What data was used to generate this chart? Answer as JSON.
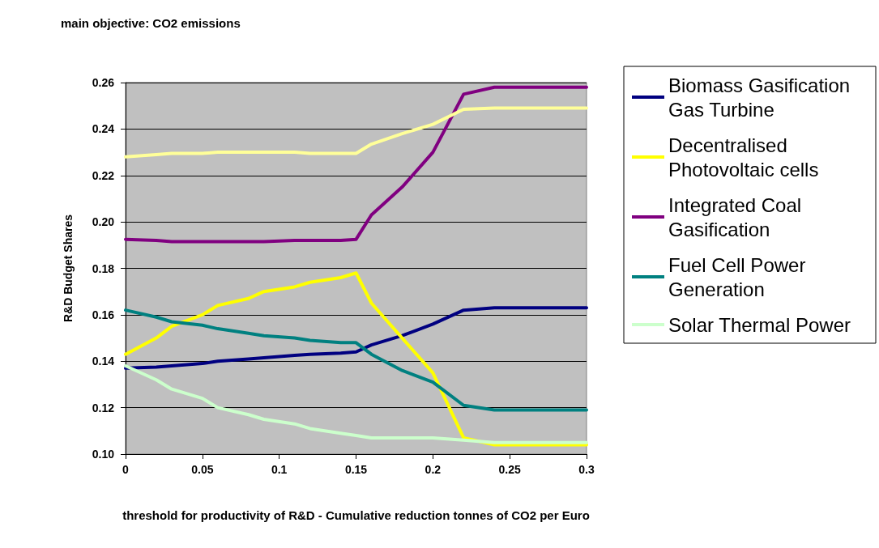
{
  "chart_data": {
    "type": "line",
    "title": "main objective: CO2 emissions",
    "xlabel": "threshold for productivity of R&D - Cumulative reduction tonnes of CO2 per Euro",
    "ylabel": "R&D Budget Shares",
    "x": [
      0,
      0.02,
      0.03,
      0.05,
      0.06,
      0.08,
      0.09,
      0.11,
      0.12,
      0.14,
      0.15,
      0.16,
      0.18,
      0.2,
      0.22,
      0.24,
      0.3
    ],
    "series": [
      {
        "name": "Biomass Gasification Gas Turbine",
        "color": "#000080",
        "values": [
          0.137,
          0.1375,
          0.138,
          0.139,
          0.14,
          0.141,
          0.1415,
          0.1425,
          0.143,
          0.1435,
          0.144,
          0.147,
          0.151,
          0.156,
          0.162,
          0.163,
          0.163
        ]
      },
      {
        "name": "Decentralised Photovoltaic cells",
        "color": "#ffff00",
        "values": [
          0.143,
          0.15,
          0.155,
          0.16,
          0.164,
          0.167,
          0.17,
          0.172,
          0.174,
          0.176,
          0.178,
          0.165,
          0.15,
          0.135,
          0.107,
          0.104,
          0.104
        ]
      },
      {
        "name": "Integrated Coal Gasification",
        "color": "#800080",
        "values": [
          0.1925,
          0.192,
          0.1915,
          0.1915,
          0.1915,
          0.1915,
          0.1915,
          0.192,
          0.192,
          0.192,
          0.1925,
          0.203,
          0.215,
          0.23,
          0.255,
          0.258,
          0.258
        ]
      },
      {
        "name": "Fuel Cell Power Generation",
        "color": "#008080",
        "values": [
          0.162,
          0.159,
          0.157,
          0.1555,
          0.154,
          0.152,
          0.151,
          0.15,
          0.149,
          0.148,
          0.148,
          0.143,
          0.136,
          0.131,
          0.121,
          0.119,
          0.119
        ]
      },
      {
        "name": "Solar Thermal Power",
        "color": "#ccffcc",
        "values": [
          0.138,
          0.132,
          0.128,
          0.124,
          0.12,
          0.117,
          0.115,
          0.113,
          0.111,
          0.109,
          0.108,
          0.107,
          0.107,
          0.107,
          0.106,
          0.105,
          0.105
        ]
      },
      {
        "color": "#ffff99",
        "values": [
          0.228,
          0.229,
          0.2295,
          0.2295,
          0.23,
          0.23,
          0.23,
          0.23,
          0.2295,
          0.2295,
          0.2295,
          0.2335,
          0.238,
          0.242,
          0.2485,
          0.249,
          0.249
        ]
      }
    ],
    "xlim": [
      0,
      0.3
    ],
    "xticks": [
      0,
      0.05,
      0.1,
      0.15,
      0.2,
      0.25,
      0.3
    ],
    "ylim": [
      0.1,
      0.26
    ],
    "yticks": [
      {
        "value": 0.1,
        "label": "0.10"
      },
      {
        "value": 0.12,
        "label": "0.12"
      },
      {
        "value": 0.14,
        "label": "0.14"
      },
      {
        "value": 0.16,
        "label": "0.16"
      },
      {
        "value": 0.18,
        "label": "0.18"
      },
      {
        "value": 0.2,
        "label": "0.20"
      },
      {
        "value": 0.22,
        "label": "0.22"
      },
      {
        "value": 0.24,
        "label": "0.24"
      },
      {
        "value": 0.26,
        "label": "0.26"
      }
    ],
    "grid": "y",
    "legend": "right",
    "marker": "none",
    "line_style": "solid"
  }
}
